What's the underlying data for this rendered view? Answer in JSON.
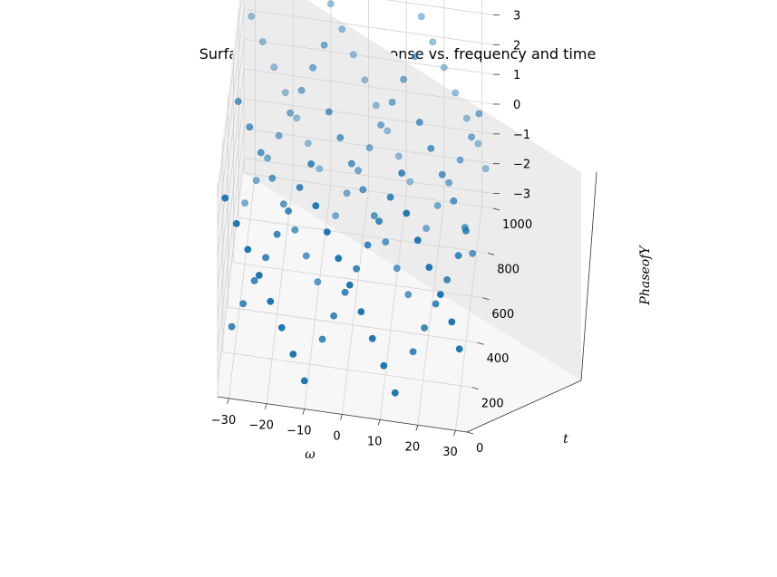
{
  "chart_data": {
    "type": "scatter",
    "projection": "3d",
    "title": "Surface plot of Phase response vs. frequency and time",
    "xlabel": "ω",
    "ylabel": "t",
    "zlabel": "PhaseofY",
    "xlim": [
      -33,
      33
    ],
    "ylim": [
      0,
      1000
    ],
    "zlim": [
      -3.5,
      3.5
    ],
    "x_ticks": [
      "−30",
      "−20",
      "−10",
      "0",
      "10",
      "20",
      "30"
    ],
    "y_ticks": [
      "0",
      "200",
      "400",
      "600",
      "800",
      "1000"
    ],
    "z_ticks": [
      "−3",
      "−2",
      "−1",
      "0",
      "1",
      "2",
      "3"
    ],
    "grid": true,
    "marker_color": "#1f77b4",
    "x_samples": [
      -31,
      -28,
      -25,
      -22,
      -19,
      -16,
      -13,
      -10,
      -7,
      -4,
      -1,
      2,
      5,
      8,
      11,
      14,
      17,
      20,
      23,
      26,
      29,
      31
    ],
    "series": [
      {
        "t": 0,
        "phase": [
          3.0,
          2.2,
          1.4,
          0.6,
          -0.2,
          -1.0,
          -1.8,
          -2.6,
          3.0,
          2.2,
          1.4,
          0.6,
          -0.2,
          -1.0,
          -1.8,
          -2.6,
          3.0,
          2.2,
          1.4,
          0.6,
          -0.2,
          -1.0
        ]
      },
      {
        "t": 250,
        "phase": [
          -3.0,
          -2.2,
          -1.4,
          -0.6,
          0.2,
          1.0,
          1.8,
          2.6,
          -3.0,
          -2.2,
          -1.4,
          -0.6,
          0.2,
          1.0,
          1.8,
          2.6,
          -3.0,
          -2.2,
          -1.4,
          -0.6,
          0.2,
          1.0
        ]
      },
      {
        "t": 500,
        "phase": [
          2.6,
          1.8,
          1.0,
          0.2,
          -0.6,
          -1.4,
          -2.2,
          -3.0,
          2.6,
          1.8,
          1.0,
          0.2,
          -0.6,
          -1.4,
          -2.2,
          -3.0,
          2.6,
          1.8,
          1.0,
          0.2,
          -0.6,
          -1.4
        ]
      },
      {
        "t": 750,
        "phase": [
          -2.6,
          -1.8,
          -1.0,
          -0.2,
          0.6,
          1.4,
          2.2,
          3.0,
          -2.6,
          -1.8,
          -1.0,
          -0.2,
          0.6,
          1.4,
          2.2,
          3.0,
          -2.6,
          -1.8,
          -1.0,
          -0.2,
          0.6,
          1.4
        ]
      },
      {
        "t": 1000,
        "phase": [
          1.8,
          1.0,
          0.2,
          -0.6,
          -1.4,
          -2.2,
          -3.0,
          2.6,
          1.8,
          1.0,
          0.2,
          -0.6,
          -1.4,
          -2.2,
          -3.0,
          2.6,
          1.8,
          1.0,
          0.2,
          -0.6,
          -1.4,
          -2.2
        ]
      }
    ]
  }
}
